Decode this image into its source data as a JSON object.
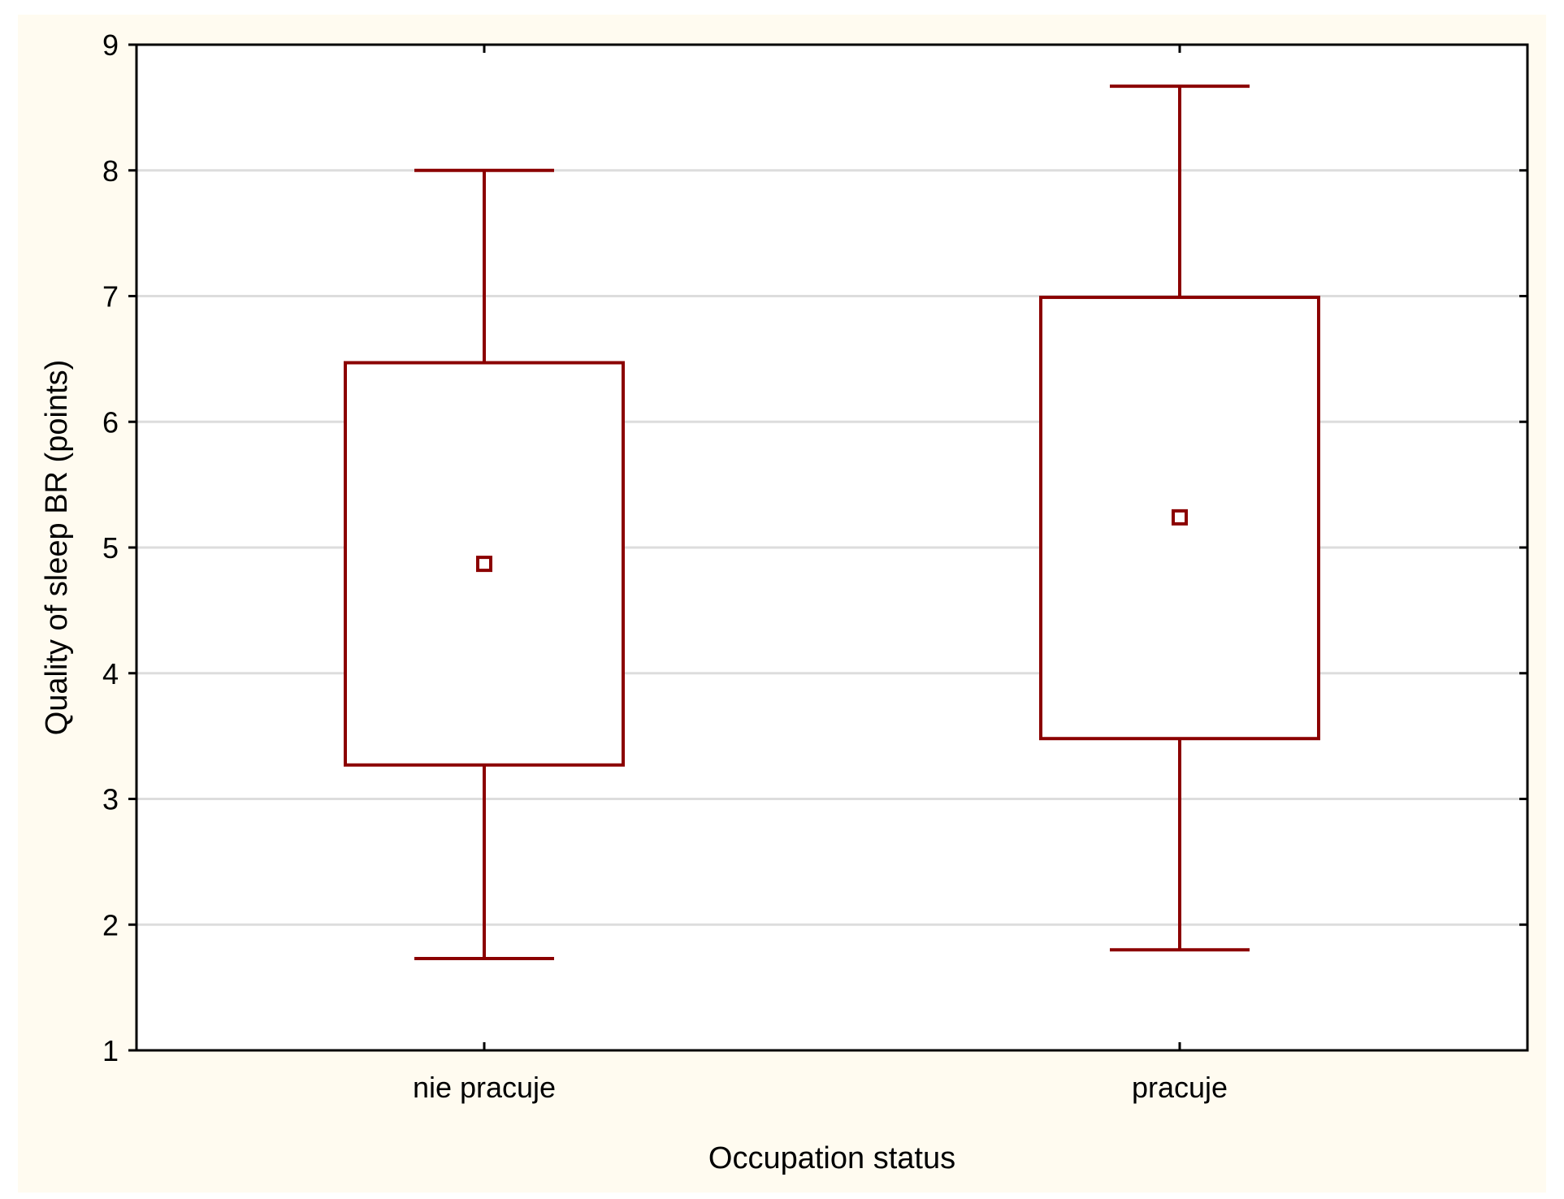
{
  "chart_data": {
    "type": "boxplot",
    "xlabel": "Occupation status",
    "ylabel": "Quality of sleep BR (points)",
    "ylim": [
      1,
      9
    ],
    "yticks": [
      1,
      2,
      3,
      4,
      5,
      6,
      7,
      8,
      9
    ],
    "grid": true,
    "categories": [
      "nie pracuje",
      "pracuje"
    ],
    "series": [
      {
        "category": "nie pracuje",
        "whisker_low": 1.73,
        "box_low": 3.27,
        "center": 4.87,
        "box_high": 6.47,
        "whisker_high": 8.0
      },
      {
        "category": "pracuje",
        "whisker_low": 1.8,
        "box_low": 3.48,
        "center": 5.24,
        "box_high": 6.99,
        "whisker_high": 8.67
      }
    ],
    "colors": {
      "background": "#fffbf0",
      "plot": "#ffffff",
      "grid": "#dddddd",
      "series": "#8b0000",
      "axis": "#000000"
    }
  }
}
